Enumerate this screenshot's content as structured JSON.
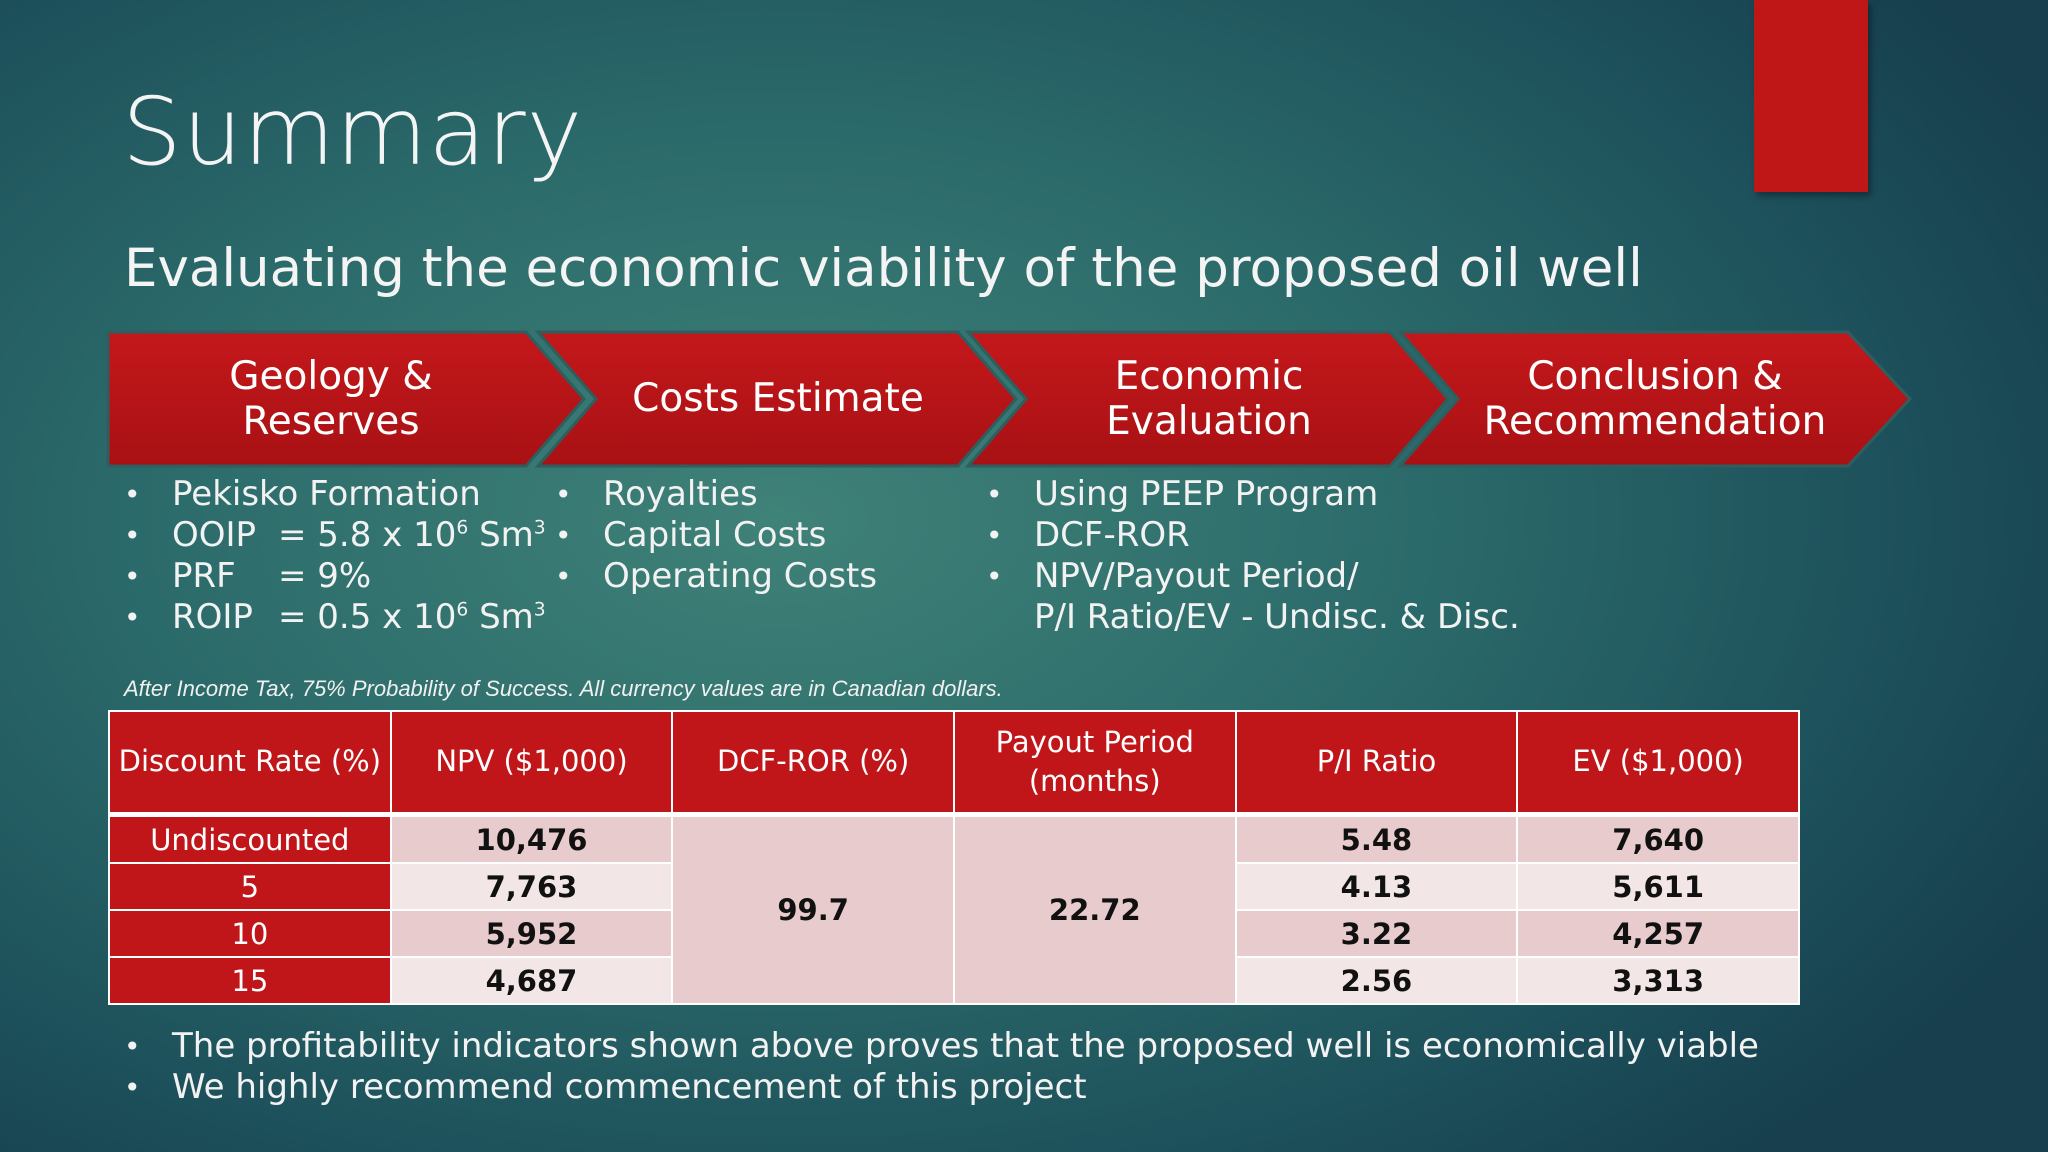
{
  "slide": {
    "title": "Summary",
    "subtitle": "Evaluating the economic viability of the proposed oil well",
    "accent_color": "#bf1717"
  },
  "process_steps": [
    {
      "label": "Geology &\nReserves"
    },
    {
      "label": "Costs Estimate"
    },
    {
      "label": "Economic\nEvaluation"
    },
    {
      "label": "Conclusion &\nRecommendation"
    }
  ],
  "geology_bullets": {
    "b1": "Pekisko Formation",
    "ooip_key": "OOIP",
    "ooip_val": "= 5.8 x 10",
    "ooip_exp": "6",
    "ooip_unit": " Sm",
    "ooip_unit_exp": "3",
    "prf_key": "PRF",
    "prf_val": "= 9%",
    "roip_key": "ROIP",
    "roip_val": "= 0.5 x 10",
    "roip_exp": "6",
    "roip_unit": " Sm",
    "roip_unit_exp": "3"
  },
  "cost_bullets": [
    "Royalties",
    "Capital Costs",
    "Operating Costs"
  ],
  "econ_bullets": [
    "Using PEEP Program",
    "DCF-ROR",
    "NPV/Payout Period/",
    "P/I Ratio/EV  - Undisc. & Disc."
  ],
  "table_note": "After Income Tax, 75% Probability of Success. All currency values are in Canadian dollars.",
  "table": {
    "headers": [
      "Discount Rate (%)",
      "NPV ($1,000)",
      "DCF-ROR (%)",
      "Payout Period\n(months)",
      "P/I Ratio",
      "EV ($1,000)"
    ],
    "rows": [
      {
        "rate": "Undiscounted",
        "npv": "10,476",
        "pi": "5.48",
        "ev": "7,640"
      },
      {
        "rate": "5",
        "npv": "7,763",
        "pi": "4.13",
        "ev": "5,611"
      },
      {
        "rate": "10",
        "npv": "5,952",
        "pi": "3.22",
        "ev": "4,257"
      },
      {
        "rate": "15",
        "npv": "4,687",
        "pi": "2.56",
        "ev": "3,313"
      }
    ],
    "dcf_ror": "99.7",
    "payout_period": "22.72"
  },
  "conclusions": [
    "The profitability indicators shown above proves that the proposed well is economically viable",
    "We highly recommend commencement of this project"
  ],
  "bullet_glyph": "•"
}
